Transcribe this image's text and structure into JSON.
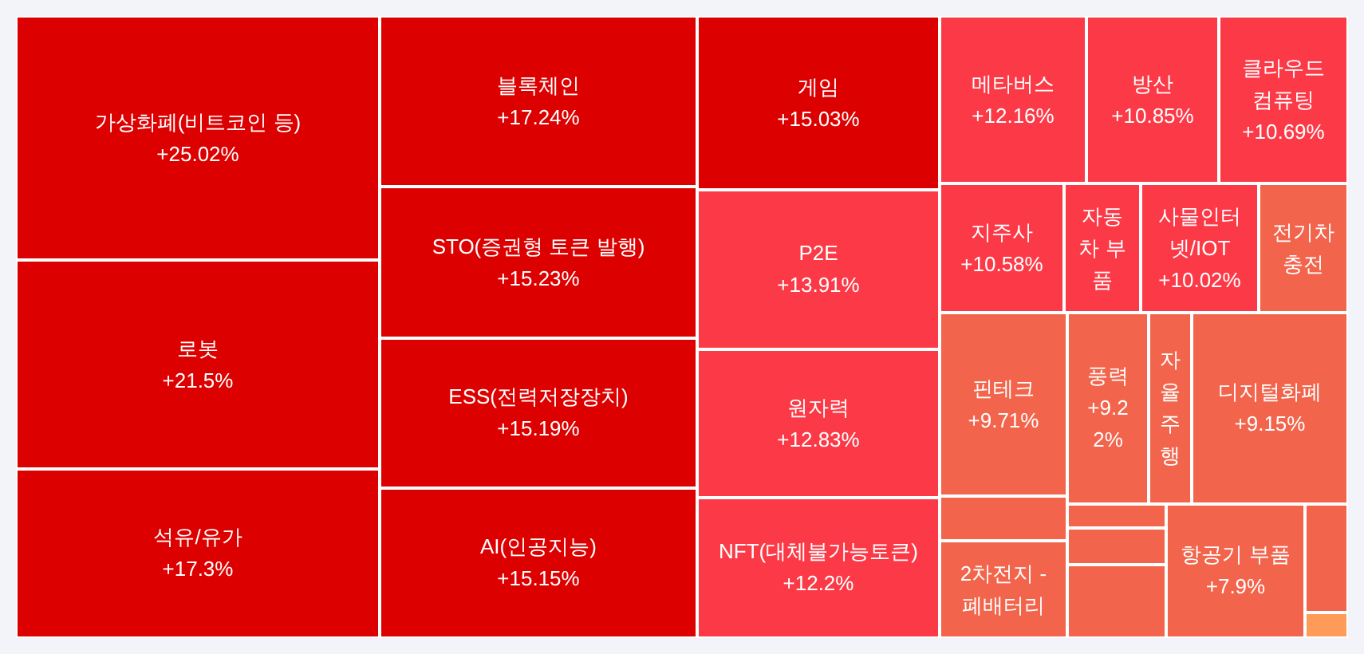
{
  "chart_data": {
    "type": "other",
    "categories": [
      "가상화폐(비트코인 등)",
      "로봇",
      "석유/유가",
      "블록체인",
      "STO(증권형 토큰 발행)",
      "ESS(전력저장장치)",
      "AI(인공지능)",
      "게임",
      "P2E",
      "원자력",
      "NFT(대체불가능토큰)",
      "메타버스",
      "방산",
      "클라우드 컴퓨팅",
      "지주사",
      "자동차 부품",
      "사물인터넷/IOT",
      "전기차 충전",
      "핀테크",
      null,
      "2차전지 - 폐배터리",
      "풍력",
      "자율주행",
      "디지털화폐",
      null,
      null,
      null,
      "항공기 부품",
      null,
      null
    ],
    "values": [
      25.02,
      21.5,
      17.3,
      17.24,
      15.23,
      15.19,
      15.15,
      15.03,
      13.91,
      12.83,
      12.2,
      12.16,
      10.85,
      10.69,
      10.58,
      null,
      10.02,
      null,
      9.71,
      null,
      null,
      9.22,
      null,
      9.15,
      null,
      null,
      null,
      7.9,
      null,
      null
    ],
    "value_labels": [
      "+25.02%",
      "+21.5%",
      "+17.3%",
      "+17.24%",
      "+15.23%",
      "+15.19%",
      "+15.15%",
      "+15.03%",
      "+13.91%",
      "+12.83%",
      "+12.2%",
      "+12.16%",
      "+10.85%",
      "+10.69%",
      "+10.58%",
      null,
      "+10.02%",
      null,
      "+9.71%",
      null,
      null,
      "+9.22%",
      null,
      "+9.15%",
      null,
      null,
      null,
      "+7.9%",
      null,
      null
    ],
    "colors": [
      "#dd0000",
      "#dd0000",
      "#dd0000",
      "#dd0000",
      "#dd0000",
      "#dd0000",
      "#dd0000",
      "#dd0000",
      "#fc3a47",
      "#fc3a47",
      "#fc3a47",
      "#fc3a47",
      "#fc3a47",
      "#fc3a47",
      "#fc3a47",
      "#fc3a47",
      "#fc3a47",
      "#f2644b",
      "#f2644b",
      "#f2644b",
      "#f2644b",
      "#f2644b",
      "#f2644b",
      "#f2644b",
      "#f2644b",
      "#f2644b",
      "#f2644b",
      "#f2644b",
      "#f2644b",
      "#ff9b59"
    ]
  }
}
